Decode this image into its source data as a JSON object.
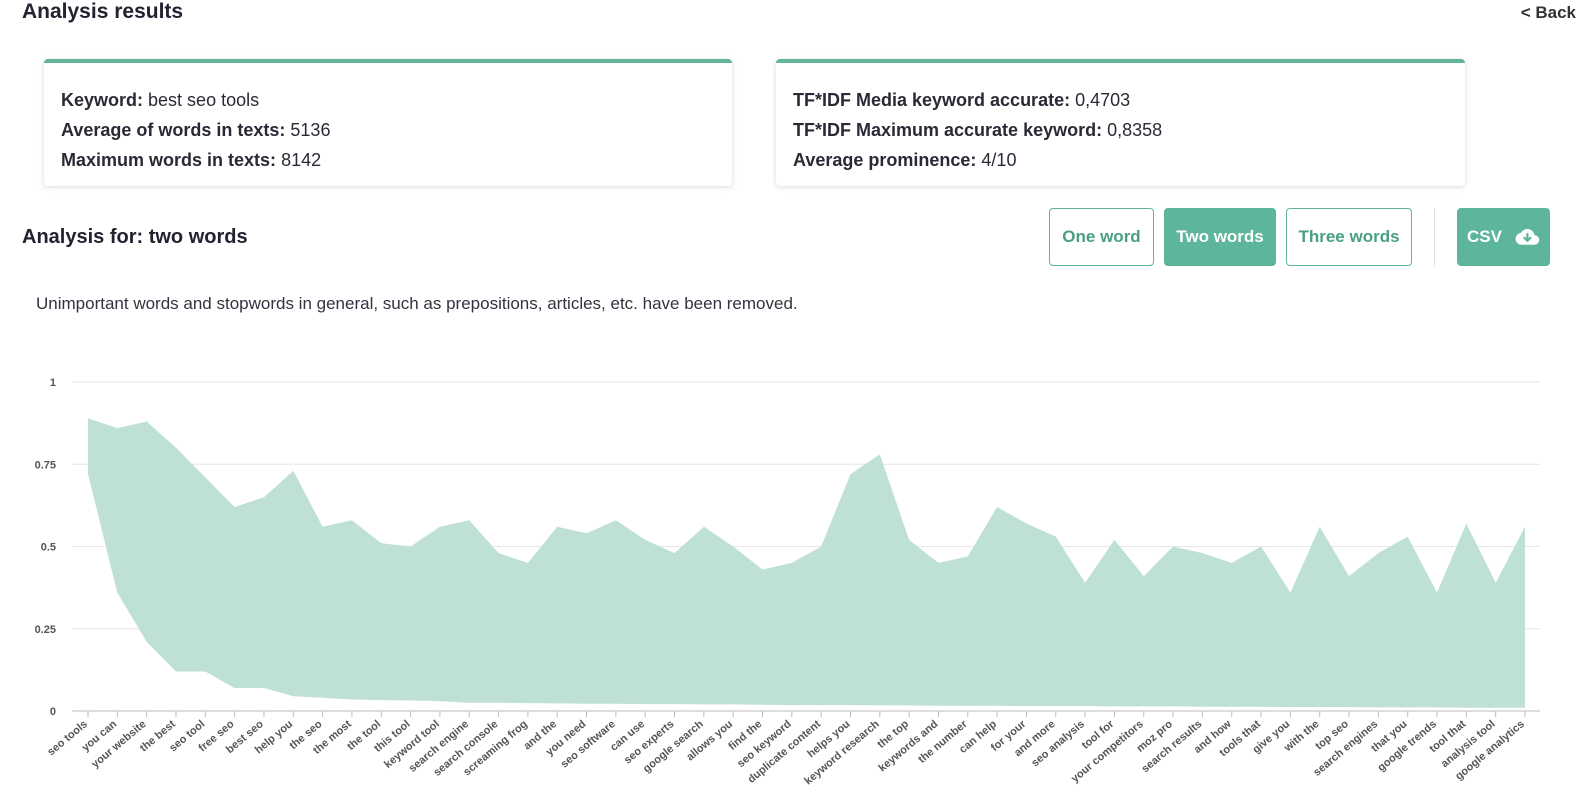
{
  "header": {
    "title": "Analysis results",
    "back_label": "< Back"
  },
  "summary_left": {
    "rows": [
      {
        "label": "Keyword:",
        "value": "best seo tools"
      },
      {
        "label": "Average of words in texts:",
        "value": "5136"
      },
      {
        "label": "Maximum words in texts:",
        "value": "8142"
      }
    ]
  },
  "summary_right": {
    "rows": [
      {
        "label": "TF*IDF Media keyword accurate:",
        "value": "0,4703"
      },
      {
        "label": "TF*IDF Maximum accurate keyword:",
        "value": "0,8358"
      },
      {
        "label": "Average prominence:",
        "value": "4/10"
      }
    ]
  },
  "analysis": {
    "title": "Analysis for: two words",
    "buttons": {
      "one": "One word",
      "two": "Two words",
      "three": "Three words",
      "csv": "CSV"
    },
    "active": "two",
    "note": "Unimportant words and stopwords in general, such as prepositions, articles, etc. have been removed."
  },
  "colors": {
    "accent": "#5db59b",
    "area_fill": "#bfe0d5",
    "grid": "#e6e6e6"
  },
  "chart_data": {
    "type": "area",
    "ylim": [
      0,
      1
    ],
    "yticks": [
      "0",
      "0.25",
      "0.5",
      "0.75",
      "1"
    ],
    "categories": [
      "seo tools",
      "you can",
      "your website",
      "the best",
      "seo tool",
      "free seo",
      "best seo",
      "help you",
      "the seo",
      "the most",
      "the tool",
      "this tool",
      "keyword tool",
      "search engine",
      "search console",
      "screaming frog",
      "and the",
      "you need",
      "seo software",
      "can use",
      "seo experts",
      "google search",
      "allows you",
      "find the",
      "seo keyword",
      "duplicate content",
      "helps you",
      "keyword research",
      "the top",
      "keywords and",
      "the number",
      "can help",
      "for your",
      "and more",
      "seo analysis",
      "tool for",
      "your competitors",
      "moz pro",
      "search results",
      "and how",
      "tools that",
      "give you",
      "with the",
      "top seo",
      "search engines",
      "that you",
      "google trends",
      "tool that",
      "analysis tool",
      "google analytics"
    ],
    "series": [
      {
        "values": [
          0.89,
          0.86,
          0.88,
          0.8,
          0.71,
          0.62,
          0.65,
          0.73,
          0.56,
          0.58,
          0.51,
          0.5,
          0.56,
          0.58,
          0.48,
          0.45,
          0.56,
          0.54,
          0.58,
          0.52,
          0.48,
          0.56,
          0.5,
          0.43,
          0.45,
          0.5,
          0.72,
          0.78,
          0.52,
          0.45,
          0.47,
          0.62,
          0.57,
          0.53,
          0.39,
          0.52,
          0.41,
          0.5,
          0.48,
          0.45,
          0.5,
          0.36,
          0.56,
          0.41,
          0.48,
          0.53,
          0.36,
          0.57,
          0.39,
          0.56
        ]
      },
      {
        "values": [
          0.72,
          0.36,
          0.21,
          0.12,
          0.12,
          0.07,
          0.07,
          0.045,
          0.04,
          0.035,
          0.033,
          0.032,
          0.03,
          0.025,
          0.025,
          0.024,
          0.023,
          0.022,
          0.022,
          0.021,
          0.021,
          0.02,
          0.02,
          0.019,
          0.018,
          0.018,
          0.018,
          0.017,
          0.017,
          0.016,
          0.016,
          0.016,
          0.015,
          0.015,
          0.015,
          0.014,
          0.014,
          0.014,
          0.013,
          0.013,
          0.013,
          0.012,
          0.012,
          0.012,
          0.011,
          0.011,
          0.011,
          0.01,
          0.01,
          0.01
        ]
      }
    ]
  }
}
